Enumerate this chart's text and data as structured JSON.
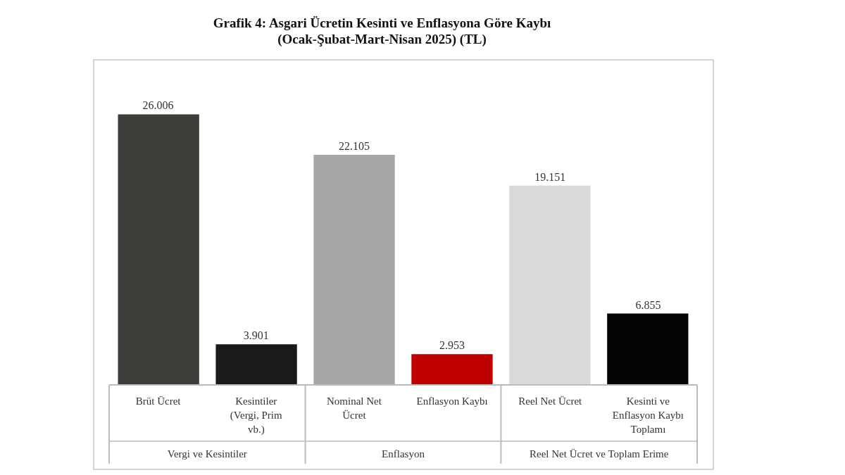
{
  "chart_data": {
    "type": "bar",
    "title": "Grafik 4: Asgari Ücretin Kesinti ve Enflasyona Göre Kaybı",
    "subtitle": "(Ocak-Şubat-Mart-Nisan 2025) (TL)",
    "categories": [
      "Brüt Ücret",
      "Kesintiler (Vergi, Prim vb.)",
      "Nominal Net Ücret",
      "Enflasyon Kaybı",
      "Reel Net Ücret",
      "Kesinti ve Enflasyon Kaybı Toplamı"
    ],
    "values": [
      26006,
      3901,
      22105,
      2953,
      19151,
      6855
    ],
    "value_labels": [
      "26.006",
      "3.901",
      "22.105",
      "2.953",
      "19.151",
      "6.855"
    ],
    "colors": [
      "#3d3c38",
      "#1a1a1a",
      "#a6a6a6",
      "#c00000",
      "#d9d9d9",
      "#050505"
    ],
    "annotations": [
      "Vergi ve Kesintiler",
      "Enflasyon",
      "Reel Net Ücret ve Toplam Erime"
    ]
  }
}
